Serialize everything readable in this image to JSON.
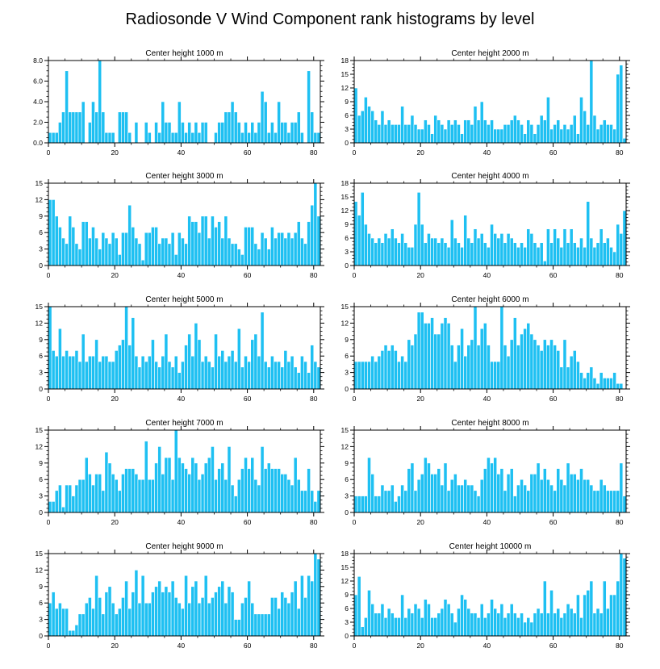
{
  "figure": {
    "title": "Radiosonde V Wind Component rank histograms by level",
    "bar_color": "#1ec0f2",
    "bar_edge_color": "#ffffff",
    "axis_color": "#000000"
  },
  "chart_data": [
    {
      "type": "bar",
      "title": "Center height 1000 m",
      "x_start": 0,
      "xlim": [
        0,
        82
      ],
      "xticks": [
        0,
        20,
        40,
        60,
        80
      ],
      "ylim": [
        0,
        8
      ],
      "yticks": [
        0,
        2,
        4,
        6,
        8
      ],
      "ytick_labels": [
        "0.0",
        "2.0",
        "4.0",
        "6.0",
        "8.0"
      ],
      "values": [
        1,
        1,
        1,
        2,
        3,
        7,
        3,
        3,
        3,
        3,
        4,
        0,
        2,
        4,
        3,
        8,
        3,
        1,
        1,
        1,
        0,
        3,
        3,
        3,
        1,
        0,
        2,
        0,
        0,
        2,
        1,
        0,
        2,
        1,
        4,
        2,
        2,
        1,
        1,
        4,
        2,
        1,
        2,
        1,
        2,
        1,
        2,
        2,
        0,
        0,
        1,
        2,
        2,
        3,
        3,
        4,
        3,
        2,
        1,
        2,
        1,
        2,
        1,
        2,
        5,
        4,
        1,
        2,
        1,
        4,
        2,
        2,
        1,
        2,
        2,
        3,
        1,
        0,
        7,
        3,
        1,
        1
      ]
    },
    {
      "type": "bar",
      "title": "Center height 2000 m",
      "x_start": 0,
      "xlim": [
        0,
        82
      ],
      "xticks": [
        0,
        20,
        40,
        60,
        80
      ],
      "ylim": [
        0,
        18
      ],
      "yticks": [
        0,
        3,
        6,
        9,
        12,
        15,
        18
      ],
      "ytick_labels": [
        "0",
        "3",
        "6",
        "9",
        "12",
        "15",
        "18"
      ],
      "values": [
        12,
        6,
        7,
        10,
        8,
        7,
        5,
        4,
        7,
        4,
        5,
        4,
        4,
        4,
        8,
        4,
        4,
        6,
        4,
        3,
        3,
        5,
        4,
        2,
        6,
        5,
        4,
        3,
        5,
        4,
        5,
        4,
        2,
        5,
        5,
        4,
        8,
        5,
        9,
        5,
        4,
        5,
        3,
        3,
        3,
        4,
        4,
        5,
        6,
        5,
        4,
        2,
        5,
        4,
        2,
        4,
        6,
        5,
        10,
        3,
        4,
        5,
        3,
        4,
        3,
        4,
        6,
        2,
        10,
        7,
        4,
        18,
        6,
        3,
        4,
        5,
        4,
        4,
        3,
        15,
        17,
        1
      ]
    },
    {
      "type": "bar",
      "title": "Center height 3000 m",
      "x_start": 0,
      "xlim": [
        0,
        82
      ],
      "xticks": [
        0,
        20,
        40,
        60,
        80
      ],
      "ylim": [
        0,
        15
      ],
      "yticks": [
        0,
        3,
        6,
        9,
        12,
        15
      ],
      "ytick_labels": [
        "0",
        "3",
        "6",
        "9",
        "12",
        "15"
      ],
      "values": [
        12,
        12,
        9,
        7,
        5,
        4,
        9,
        7,
        4,
        3,
        8,
        8,
        5,
        7,
        5,
        3,
        6,
        5,
        4,
        6,
        5,
        2,
        6,
        6,
        11,
        7,
        5,
        4,
        1,
        6,
        6,
        7,
        7,
        4,
        5,
        5,
        4,
        6,
        2,
        6,
        5,
        4,
        9,
        8,
        8,
        6,
        9,
        9,
        5,
        9,
        7,
        8,
        5,
        9,
        5,
        4,
        4,
        3,
        2,
        7,
        7,
        7,
        4,
        3,
        6,
        5,
        3,
        7,
        5,
        6,
        6,
        5,
        6,
        5,
        6,
        8,
        5,
        4,
        8,
        11,
        15,
        9
      ]
    },
    {
      "type": "bar",
      "title": "Center height 4000 m",
      "x_start": 0,
      "xlim": [
        0,
        82
      ],
      "xticks": [
        0,
        20,
        40,
        60,
        80
      ],
      "ylim": [
        0,
        18
      ],
      "yticks": [
        0,
        3,
        6,
        9,
        12,
        15,
        18
      ],
      "ytick_labels": [
        "0",
        "3",
        "6",
        "9",
        "12",
        "15",
        "18"
      ],
      "values": [
        14,
        11,
        16,
        9,
        7,
        6,
        5,
        6,
        5,
        7,
        6,
        8,
        6,
        5,
        7,
        5,
        4,
        4,
        9,
        16,
        9,
        5,
        7,
        6,
        6,
        5,
        6,
        5,
        4,
        10,
        6,
        5,
        4,
        11,
        6,
        5,
        8,
        6,
        7,
        5,
        4,
        9,
        7,
        6,
        7,
        5,
        7,
        6,
        5,
        4,
        5,
        4,
        8,
        7,
        5,
        4,
        5,
        1,
        8,
        5,
        8,
        6,
        4,
        8,
        5,
        8,
        5,
        4,
        6,
        4,
        14,
        6,
        4,
        5,
        8,
        5,
        6,
        4,
        3,
        9,
        7,
        12
      ]
    },
    {
      "type": "bar",
      "title": "Center height 5000 m",
      "x_start": 0,
      "xlim": [
        0,
        82
      ],
      "xticks": [
        0,
        20,
        40,
        60,
        80
      ],
      "ylim": [
        0,
        15
      ],
      "yticks": [
        0,
        3,
        6,
        9,
        12,
        15
      ],
      "ytick_labels": [
        "0",
        "3",
        "6",
        "9",
        "12",
        "15"
      ],
      "values": [
        15,
        7,
        6,
        11,
        6,
        7,
        6,
        6,
        7,
        5,
        10,
        5,
        6,
        6,
        9,
        5,
        6,
        6,
        5,
        5,
        7,
        8,
        9,
        15,
        8,
        13,
        6,
        4,
        6,
        5,
        6,
        9,
        5,
        4,
        6,
        10,
        5,
        4,
        6,
        3,
        5,
        8,
        10,
        6,
        12,
        9,
        5,
        6,
        5,
        4,
        10,
        6,
        7,
        5,
        6,
        7,
        5,
        11,
        4,
        6,
        5,
        9,
        10,
        6,
        14,
        5,
        4,
        6,
        5,
        5,
        4,
        7,
        5,
        6,
        4,
        3,
        6,
        5,
        3,
        8,
        5,
        4
      ]
    },
    {
      "type": "bar",
      "title": "Center height 6000 m",
      "x_start": 0,
      "xlim": [
        0,
        82
      ],
      "xticks": [
        0,
        20,
        40,
        60,
        80
      ],
      "ylim": [
        0,
        15
      ],
      "yticks": [
        0,
        3,
        6,
        9,
        12,
        15
      ],
      "ytick_labels": [
        "0",
        "3",
        "6",
        "9",
        "12",
        "15"
      ],
      "values": [
        5,
        5,
        5,
        5,
        5,
        6,
        5,
        6,
        7,
        8,
        7,
        8,
        7,
        5,
        6,
        5,
        9,
        8,
        10,
        14,
        14,
        12,
        12,
        13,
        10,
        10,
        12,
        13,
        12,
        8,
        5,
        8,
        11,
        6,
        8,
        9,
        15,
        8,
        11,
        12,
        8,
        5,
        5,
        5,
        15,
        8,
        6,
        9,
        13,
        8,
        10,
        11,
        12,
        10,
        9,
        8,
        7,
        9,
        8,
        9,
        8,
        7,
        4,
        9,
        4,
        6,
        7,
        5,
        3,
        2,
        3,
        4,
        2,
        1,
        3,
        2,
        2,
        2,
        3,
        1,
        1,
        0
      ]
    },
    {
      "type": "bar",
      "title": "Center height 7000 m",
      "x_start": 0,
      "xlim": [
        0,
        82
      ],
      "xticks": [
        0,
        20,
        40,
        60,
        80
      ],
      "ylim": [
        0,
        15
      ],
      "yticks": [
        0,
        3,
        6,
        9,
        12,
        15
      ],
      "ytick_labels": [
        "0",
        "3",
        "6",
        "9",
        "12",
        "15"
      ],
      "values": [
        2,
        2,
        4,
        5,
        1,
        5,
        5,
        3,
        5,
        6,
        6,
        10,
        7,
        5,
        7,
        7,
        4,
        11,
        9,
        7,
        6,
        4,
        7,
        8,
        8,
        8,
        7,
        6,
        6,
        13,
        6,
        6,
        9,
        12,
        7,
        10,
        10,
        6,
        15,
        10,
        9,
        8,
        7,
        10,
        9,
        6,
        7,
        9,
        10,
        12,
        6,
        8,
        9,
        6,
        12,
        5,
        3,
        6,
        8,
        10,
        8,
        10,
        6,
        5,
        12,
        8,
        9,
        8,
        8,
        8,
        7,
        7,
        6,
        5,
        10,
        6,
        4,
        4,
        8,
        4,
        2,
        4
      ]
    },
    {
      "type": "bar",
      "title": "Center height 8000 m",
      "x_start": 0,
      "xlim": [
        0,
        82
      ],
      "xticks": [
        0,
        20,
        40,
        60,
        80
      ],
      "ylim": [
        0,
        15
      ],
      "yticks": [
        0,
        3,
        6,
        9,
        12,
        15
      ],
      "ytick_labels": [
        "0",
        "3",
        "6",
        "9",
        "12",
        "15"
      ],
      "values": [
        3,
        3,
        3,
        3,
        10,
        7,
        3,
        3,
        5,
        4,
        4,
        5,
        2,
        3,
        5,
        4,
        8,
        9,
        4,
        6,
        7,
        10,
        9,
        7,
        7,
        8,
        5,
        9,
        4,
        6,
        7,
        5,
        5,
        6,
        5,
        5,
        4,
        3,
        6,
        8,
        10,
        9,
        10,
        7,
        8,
        4,
        7,
        8,
        3,
        5,
        6,
        5,
        4,
        7,
        7,
        9,
        6,
        8,
        6,
        5,
        4,
        8,
        6,
        5,
        9,
        7,
        7,
        6,
        8,
        6,
        6,
        5,
        4,
        4,
        6,
        5,
        4,
        4,
        4,
        4,
        9,
        3
      ]
    },
    {
      "type": "bar",
      "title": "Center height 9000 m",
      "x_start": 0,
      "xlim": [
        0,
        82
      ],
      "xticks": [
        0,
        20,
        40,
        60,
        80
      ],
      "ylim": [
        0,
        15
      ],
      "yticks": [
        0,
        3,
        6,
        9,
        12,
        15
      ],
      "ytick_labels": [
        "0",
        "3",
        "6",
        "9",
        "12",
        "15"
      ],
      "values": [
        6,
        8,
        5,
        6,
        5,
        5,
        1,
        1,
        2,
        4,
        4,
        6,
        7,
        5,
        11,
        7,
        4,
        8,
        9,
        6,
        4,
        5,
        7,
        10,
        5,
        8,
        12,
        6,
        11,
        6,
        6,
        8,
        9,
        10,
        8,
        9,
        8,
        10,
        7,
        6,
        5,
        11,
        6,
        9,
        10,
        6,
        7,
        11,
        6,
        7,
        8,
        9,
        10,
        6,
        9,
        8,
        3,
        3,
        6,
        7,
        10,
        6,
        4,
        4,
        4,
        4,
        4,
        7,
        7,
        5,
        8,
        7,
        6,
        8,
        10,
        5,
        11,
        7,
        11,
        10,
        15,
        14
      ]
    },
    {
      "type": "bar",
      "title": "Center height 10000 m",
      "x_start": 0,
      "xlim": [
        0,
        82
      ],
      "xticks": [
        0,
        20,
        40,
        60,
        80
      ],
      "ylim": [
        0,
        18
      ],
      "yticks": [
        0,
        3,
        6,
        9,
        12,
        15,
        18
      ],
      "ytick_labels": [
        "0",
        "3",
        "6",
        "9",
        "12",
        "15",
        "18"
      ],
      "values": [
        9,
        13,
        2,
        4,
        10,
        7,
        5,
        5,
        7,
        4,
        6,
        5,
        4,
        4,
        9,
        4,
        6,
        5,
        7,
        6,
        4,
        8,
        7,
        4,
        4,
        5,
        6,
        8,
        7,
        5,
        3,
        6,
        9,
        8,
        6,
        5,
        5,
        4,
        7,
        4,
        5,
        8,
        6,
        5,
        7,
        4,
        5,
        7,
        5,
        4,
        5,
        3,
        4,
        3,
        5,
        6,
        5,
        12,
        5,
        10,
        5,
        6,
        4,
        5,
        7,
        6,
        5,
        9,
        4,
        9,
        10,
        12,
        5,
        6,
        5,
        12,
        6,
        9,
        9,
        12,
        18,
        17
      ]
    }
  ]
}
